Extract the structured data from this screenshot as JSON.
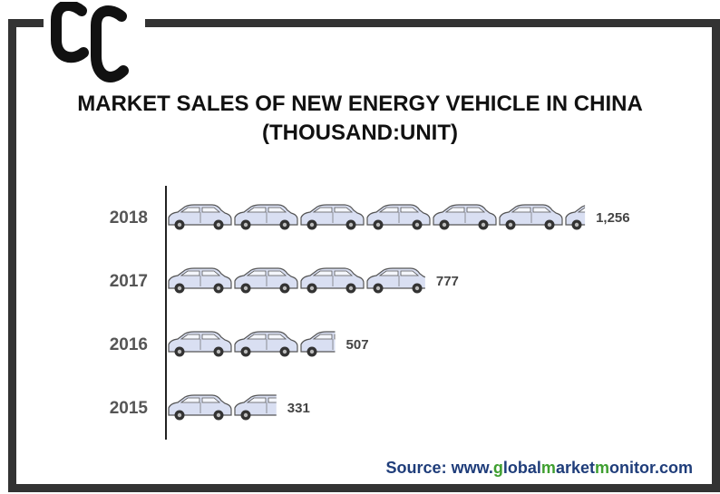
{
  "chart_data": {
    "type": "bar",
    "title_line1": "MARKET SALES OF NEW ENERGY VEHICLE IN CHINA",
    "title_line2": "(THOUSAND:UNIT)",
    "categories": [
      "2018",
      "2017",
      "2016",
      "2015"
    ],
    "values": [
      1256,
      777,
      507,
      331
    ],
    "value_labels": [
      "1,256",
      "777",
      "507",
      "331"
    ],
    "icon": "car-icon",
    "colors": {
      "car_body": "#d9dff2",
      "car_outline": "#555555",
      "wheel": "#333333",
      "axis": "#222222",
      "category_label": "#555555",
      "value_label": "#444444"
    }
  },
  "logo": {
    "icon": "cc-logo-icon",
    "color": "#111111"
  },
  "source": {
    "prefix": "Source: www.",
    "part1_hl": "g",
    "part2": "lobal",
    "part3_hl": "m",
    "part4": "arket",
    "part5_hl": "m",
    "part6": "onitor.com",
    "color": "#1f3d7a",
    "highlight_color": "#3e9f2f"
  }
}
